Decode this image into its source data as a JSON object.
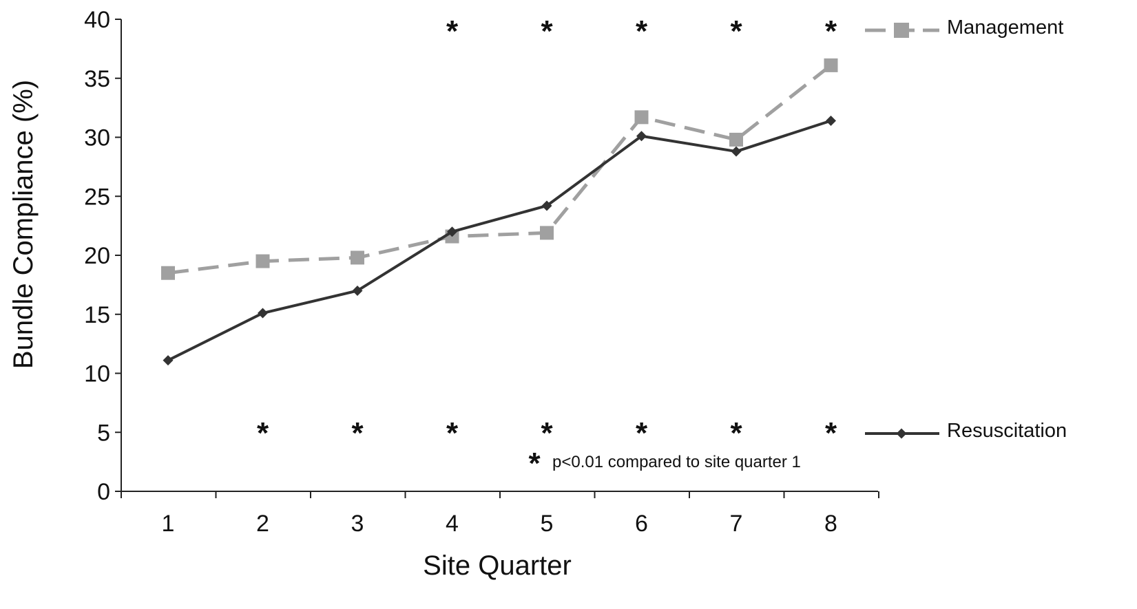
{
  "chart_data": {
    "type": "line",
    "x": [
      1,
      2,
      3,
      4,
      5,
      6,
      7,
      8
    ],
    "xlabel": "Site Quarter",
    "ylabel": "Bundle Compliance (%)",
    "ylim": [
      0,
      40
    ],
    "yticks": [
      0,
      5,
      10,
      15,
      20,
      25,
      30,
      35,
      40
    ],
    "grid": false,
    "legend_placement": "right",
    "series": [
      {
        "name": "Management",
        "values": [
          18.5,
          19.5,
          19.8,
          21.6,
          21.9,
          31.7,
          29.8,
          36.1
        ],
        "color": "#a0a0a0",
        "line_style": "dashed",
        "marker": "square",
        "significant_quarters": [
          4,
          5,
          6,
          7,
          8
        ]
      },
      {
        "name": "Resuscitation",
        "values": [
          11.1,
          15.1,
          17.0,
          22.0,
          24.2,
          30.1,
          28.8,
          31.4
        ],
        "color": "#333333",
        "line_style": "solid",
        "marker": "diamond",
        "significant_quarters": [
          2,
          3,
          4,
          5,
          6,
          7,
          8
        ]
      }
    ],
    "annotation": {
      "star": "*",
      "text": "p<0.01 compared to site quarter 1"
    }
  }
}
